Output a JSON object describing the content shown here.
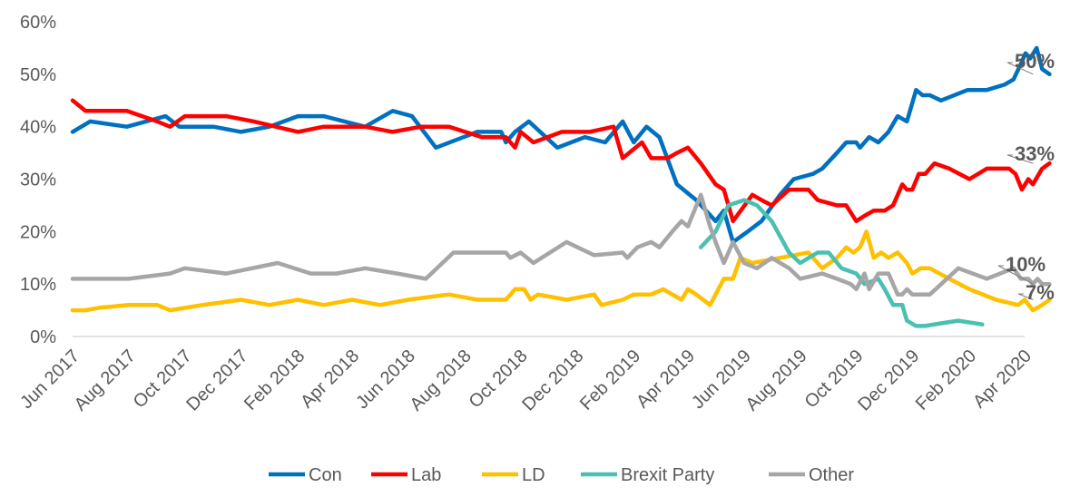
{
  "chart_data": {
    "type": "line",
    "title": "",
    "xlabel": "",
    "ylabel": "",
    "ylim": [
      0,
      60
    ],
    "xlim": [
      "2017-06",
      "2020-04"
    ],
    "y_ticks": [
      0,
      10,
      20,
      30,
      40,
      50,
      60
    ],
    "y_tick_labels": [
      "0%",
      "10%",
      "20%",
      "30%",
      "40%",
      "50%",
      "60%"
    ],
    "x_ticks": [
      "2017-06",
      "2017-08",
      "2017-10",
      "2017-12",
      "2018-02",
      "2018-04",
      "2018-06",
      "2018-08",
      "2018-10",
      "2018-12",
      "2019-02",
      "2019-04",
      "2019-06",
      "2019-08",
      "2019-10",
      "2019-12",
      "2020-02",
      "2020-04"
    ],
    "x_tick_labels": [
      "Jun 2017",
      "Aug 2017",
      "Oct 2017",
      "Dec 2017",
      "Feb 2018",
      "Apr 2018",
      "Jun 2018",
      "Aug 2018",
      "Oct 2018",
      "Dec 2018",
      "Feb 2019",
      "Apr 2019",
      "Jun 2019",
      "Aug 2019",
      "Oct 2019",
      "Dec 2019",
      "Feb 2020",
      "Apr 2020"
    ],
    "grid": "horizontal-none",
    "legend_position": "bottom",
    "series": [
      {
        "name": "Con",
        "color": "#0070C0",
        "end_label": "50%",
        "points": [
          [
            "2017-06-01",
            39
          ],
          [
            "2017-06-20",
            41
          ],
          [
            "2017-07-30",
            40
          ],
          [
            "2017-09-10",
            42
          ],
          [
            "2017-09-25",
            40
          ],
          [
            "2017-11-01",
            40
          ],
          [
            "2017-12-01",
            39
          ],
          [
            "2018-01-01",
            40
          ],
          [
            "2018-02-01",
            42
          ],
          [
            "2018-03-01",
            42
          ],
          [
            "2018-04-15",
            40
          ],
          [
            "2018-05-15",
            43
          ],
          [
            "2018-06-05",
            42
          ],
          [
            "2018-07-01",
            36
          ],
          [
            "2018-08-15",
            39
          ],
          [
            "2018-09-10",
            39
          ],
          [
            "2018-09-15",
            37
          ],
          [
            "2018-09-25",
            39
          ],
          [
            "2018-10-10",
            41
          ],
          [
            "2018-11-10",
            36
          ],
          [
            "2018-12-10",
            38
          ],
          [
            "2019-01-01",
            37
          ],
          [
            "2019-01-20",
            41
          ],
          [
            "2019-02-01",
            37
          ],
          [
            "2019-02-15",
            40
          ],
          [
            "2019-03-01",
            38
          ],
          [
            "2019-03-20",
            29
          ],
          [
            "2019-04-10",
            26
          ],
          [
            "2019-05-01",
            22
          ],
          [
            "2019-05-10",
            24
          ],
          [
            "2019-05-20",
            18
          ],
          [
            "2019-06-05",
            20
          ],
          [
            "2019-06-20",
            22
          ],
          [
            "2019-07-10",
            27
          ],
          [
            "2019-07-25",
            30
          ],
          [
            "2019-08-15",
            31
          ],
          [
            "2019-08-25",
            32
          ],
          [
            "2019-09-10",
            35
          ],
          [
            "2019-09-20",
            37
          ],
          [
            "2019-10-01",
            37
          ],
          [
            "2019-10-05",
            36
          ],
          [
            "2019-10-15",
            38
          ],
          [
            "2019-10-25",
            37
          ],
          [
            "2019-11-05",
            39
          ],
          [
            "2019-11-15",
            42
          ],
          [
            "2019-11-25",
            41
          ],
          [
            "2019-12-05",
            47
          ],
          [
            "2019-12-12",
            46
          ],
          [
            "2019-12-20",
            46
          ],
          [
            "2020-01-01",
            45
          ],
          [
            "2020-01-30",
            47
          ],
          [
            "2020-02-20",
            47
          ],
          [
            "2020-03-10",
            48
          ],
          [
            "2020-03-20",
            49
          ],
          [
            "2020-03-28",
            52
          ],
          [
            "2020-04-02",
            54
          ],
          [
            "2020-04-07",
            53
          ],
          [
            "2020-04-14",
            55
          ],
          [
            "2020-04-20",
            51
          ],
          [
            "2020-04-28",
            50
          ]
        ]
      },
      {
        "name": "Lab",
        "color": "#FF0000",
        "end_label": "33%",
        "points": [
          [
            "2017-06-01",
            45
          ],
          [
            "2017-06-15",
            43
          ],
          [
            "2017-07-30",
            43
          ],
          [
            "2017-09-01",
            41
          ],
          [
            "2017-09-15",
            40
          ],
          [
            "2017-10-01",
            42
          ],
          [
            "2017-11-15",
            42
          ],
          [
            "2017-12-15",
            41
          ],
          [
            "2018-02-01",
            39
          ],
          [
            "2018-03-01",
            40
          ],
          [
            "2018-04-15",
            40
          ],
          [
            "2018-05-15",
            39
          ],
          [
            "2018-06-15",
            40
          ],
          [
            "2018-07-15",
            40
          ],
          [
            "2018-08-20",
            38
          ],
          [
            "2018-09-15",
            38
          ],
          [
            "2018-09-25",
            36
          ],
          [
            "2018-10-01",
            39
          ],
          [
            "2018-10-15",
            37
          ],
          [
            "2018-11-15",
            39
          ],
          [
            "2018-12-15",
            39
          ],
          [
            "2019-01-10",
            40
          ],
          [
            "2019-01-20",
            34
          ],
          [
            "2019-02-10",
            37
          ],
          [
            "2019-02-20",
            34
          ],
          [
            "2019-03-10",
            34
          ],
          [
            "2019-03-20",
            35
          ],
          [
            "2019-04-01",
            36
          ],
          [
            "2019-04-15",
            33
          ],
          [
            "2019-05-01",
            29
          ],
          [
            "2019-05-10",
            28
          ],
          [
            "2019-05-20",
            22
          ],
          [
            "2019-06-10",
            27
          ],
          [
            "2019-06-20",
            26
          ],
          [
            "2019-07-01",
            25
          ],
          [
            "2019-07-20",
            28
          ],
          [
            "2019-08-10",
            28
          ],
          [
            "2019-08-20",
            26
          ],
          [
            "2019-09-10",
            25
          ],
          [
            "2019-09-20",
            25
          ],
          [
            "2019-10-01",
            22
          ],
          [
            "2019-10-10",
            23
          ],
          [
            "2019-10-20",
            24
          ],
          [
            "2019-11-01",
            24
          ],
          [
            "2019-11-10",
            25
          ],
          [
            "2019-11-20",
            29
          ],
          [
            "2019-11-25",
            28
          ],
          [
            "2019-12-01",
            28
          ],
          [
            "2019-12-08",
            31
          ],
          [
            "2019-12-15",
            31
          ],
          [
            "2019-12-25",
            33
          ],
          [
            "2020-01-10",
            32
          ],
          [
            "2020-02-01",
            30
          ],
          [
            "2020-02-20",
            32
          ],
          [
            "2020-03-15",
            32
          ],
          [
            "2020-03-22",
            31
          ],
          [
            "2020-03-29",
            28
          ],
          [
            "2020-04-05",
            30
          ],
          [
            "2020-04-10",
            29
          ],
          [
            "2020-04-20",
            32
          ],
          [
            "2020-04-28",
            33
          ]
        ]
      },
      {
        "name": "LD",
        "color": "#FFC000",
        "end_label": "7%",
        "points": [
          [
            "2017-06-01",
            5
          ],
          [
            "2017-06-15",
            5
          ],
          [
            "2017-07-01",
            5.5
          ],
          [
            "2017-08-01",
            6
          ],
          [
            "2017-09-01",
            6
          ],
          [
            "2017-09-15",
            5
          ],
          [
            "2017-10-20",
            6
          ],
          [
            "2017-12-01",
            7
          ],
          [
            "2018-01-01",
            6
          ],
          [
            "2018-02-01",
            7
          ],
          [
            "2018-03-01",
            6
          ],
          [
            "2018-04-01",
            7
          ],
          [
            "2018-05-01",
            6
          ],
          [
            "2018-06-01",
            7
          ],
          [
            "2018-07-15",
            8
          ],
          [
            "2018-08-15",
            7
          ],
          [
            "2018-09-15",
            7
          ],
          [
            "2018-09-25",
            9
          ],
          [
            "2018-10-05",
            9
          ],
          [
            "2018-10-12",
            7
          ],
          [
            "2018-10-20",
            8
          ],
          [
            "2018-11-20",
            7
          ],
          [
            "2018-12-20",
            8
          ],
          [
            "2018-12-28",
            6
          ],
          [
            "2019-01-20",
            7
          ],
          [
            "2019-02-01",
            8
          ],
          [
            "2019-02-20",
            8
          ],
          [
            "2019-03-05",
            9
          ],
          [
            "2019-03-15",
            8
          ],
          [
            "2019-03-25",
            7
          ],
          [
            "2019-04-01",
            9
          ],
          [
            "2019-04-10",
            8
          ],
          [
            "2019-04-25",
            6
          ],
          [
            "2019-05-10",
            11
          ],
          [
            "2019-05-20",
            11
          ],
          [
            "2019-05-28",
            15
          ],
          [
            "2019-06-10",
            14
          ],
          [
            "2019-07-10",
            15
          ],
          [
            "2019-08-10",
            16
          ],
          [
            "2019-08-25",
            13
          ],
          [
            "2019-09-10",
            15
          ],
          [
            "2019-09-20",
            17
          ],
          [
            "2019-09-28",
            16
          ],
          [
            "2019-10-05",
            17
          ],
          [
            "2019-10-12",
            20
          ],
          [
            "2019-10-20",
            15
          ],
          [
            "2019-10-28",
            16
          ],
          [
            "2019-11-05",
            15
          ],
          [
            "2019-11-15",
            16
          ],
          [
            "2019-11-25",
            14
          ],
          [
            "2019-12-01",
            12
          ],
          [
            "2019-12-10",
            13
          ],
          [
            "2019-12-20",
            13
          ],
          [
            "2020-01-10",
            11
          ],
          [
            "2020-02-01",
            9
          ],
          [
            "2020-03-01",
            7
          ],
          [
            "2020-03-25",
            6
          ],
          [
            "2020-04-01",
            7
          ],
          [
            "2020-04-10",
            5
          ],
          [
            "2020-04-20",
            6
          ],
          [
            "2020-04-28",
            7
          ]
        ]
      },
      {
        "name": "Brexit Party",
        "color": "#4AC0B0",
        "end_label": "",
        "points": [
          [
            "2019-04-15",
            17
          ],
          [
            "2019-05-01",
            20
          ],
          [
            "2019-05-15",
            25
          ],
          [
            "2019-06-01",
            26
          ],
          [
            "2019-06-15",
            25
          ],
          [
            "2019-07-01",
            22
          ],
          [
            "2019-07-20",
            16
          ],
          [
            "2019-08-01",
            14
          ],
          [
            "2019-08-20",
            16
          ],
          [
            "2019-09-01",
            16
          ],
          [
            "2019-09-15",
            13
          ],
          [
            "2019-10-01",
            12
          ],
          [
            "2019-10-10",
            10
          ],
          [
            "2019-10-25",
            11
          ],
          [
            "2019-11-01",
            9
          ],
          [
            "2019-11-10",
            6
          ],
          [
            "2019-11-20",
            6
          ],
          [
            "2019-11-25",
            3
          ],
          [
            "2019-12-05",
            2
          ],
          [
            "2019-12-15",
            2
          ],
          [
            "2020-01-01",
            2.5
          ],
          [
            "2020-01-20",
            3
          ],
          [
            "2020-02-15",
            2.3
          ]
        ]
      },
      {
        "name": "Other",
        "color": "#A6A6A6",
        "end_label": "10%",
        "points": [
          [
            "2017-06-01",
            11
          ],
          [
            "2017-08-01",
            11
          ],
          [
            "2017-09-15",
            12
          ],
          [
            "2017-10-01",
            13
          ],
          [
            "2017-11-15",
            12
          ],
          [
            "2018-01-10",
            14
          ],
          [
            "2018-02-15",
            12
          ],
          [
            "2018-03-15",
            12
          ],
          [
            "2018-04-15",
            13
          ],
          [
            "2018-05-20",
            12
          ],
          [
            "2018-06-20",
            11
          ],
          [
            "2018-07-20",
            16
          ],
          [
            "2018-09-15",
            16
          ],
          [
            "2018-09-20",
            15
          ],
          [
            "2018-10-01",
            16
          ],
          [
            "2018-10-15",
            14
          ],
          [
            "2018-11-20",
            18
          ],
          [
            "2018-12-20",
            15.5
          ],
          [
            "2019-01-20",
            16
          ],
          [
            "2019-01-25",
            15
          ],
          [
            "2019-02-05",
            17
          ],
          [
            "2019-02-20",
            18
          ],
          [
            "2019-03-01",
            17
          ],
          [
            "2019-03-15",
            20
          ],
          [
            "2019-03-25",
            22
          ],
          [
            "2019-04-01",
            21
          ],
          [
            "2019-04-15",
            27
          ],
          [
            "2019-04-25",
            21
          ],
          [
            "2019-05-01",
            18
          ],
          [
            "2019-05-10",
            14
          ],
          [
            "2019-05-20",
            18
          ],
          [
            "2019-06-01",
            14
          ],
          [
            "2019-06-15",
            13
          ],
          [
            "2019-07-01",
            15
          ],
          [
            "2019-07-20",
            13
          ],
          [
            "2019-08-01",
            11
          ],
          [
            "2019-08-25",
            12
          ],
          [
            "2019-09-10",
            11
          ],
          [
            "2019-09-25",
            10
          ],
          [
            "2019-10-01",
            9
          ],
          [
            "2019-10-10",
            12
          ],
          [
            "2019-10-15",
            9
          ],
          [
            "2019-10-25",
            12
          ],
          [
            "2019-11-05",
            12
          ],
          [
            "2019-11-15",
            8
          ],
          [
            "2019-11-20",
            8
          ],
          [
            "2019-11-25",
            9
          ],
          [
            "2019-12-01",
            8
          ],
          [
            "2019-12-20",
            8
          ],
          [
            "2020-01-20",
            13
          ],
          [
            "2020-02-20",
            11
          ],
          [
            "2020-03-20",
            13
          ],
          [
            "2020-03-28",
            11
          ],
          [
            "2020-04-05",
            11
          ],
          [
            "2020-04-10",
            10
          ],
          [
            "2020-04-15",
            11
          ],
          [
            "2020-04-20",
            10
          ],
          [
            "2020-04-28",
            10
          ]
        ]
      }
    ]
  }
}
